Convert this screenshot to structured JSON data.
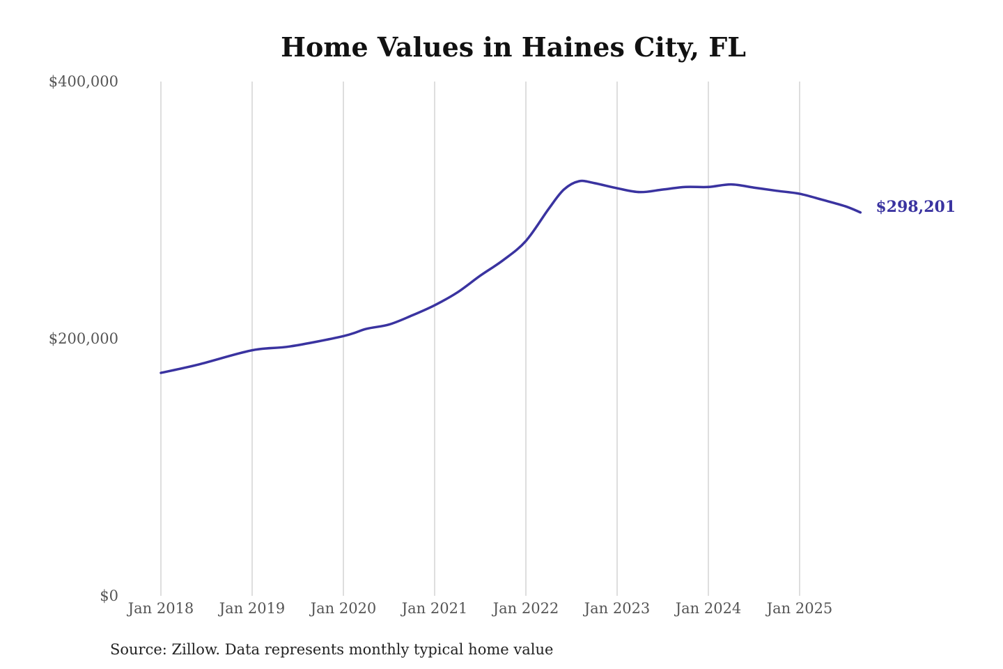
{
  "chart_data": {
    "type": "line",
    "title": "Home Values in Haines City, FL",
    "xlabel": "",
    "ylabel": "",
    "ylim": [
      0,
      400000
    ],
    "y_ticks": [
      {
        "value": 0,
        "label": "$0"
      },
      {
        "value": 200000,
        "label": "$200,000"
      },
      {
        "value": 400000,
        "label": "$400,000"
      }
    ],
    "x_ticks": [
      {
        "value": "2018-01",
        "label": "Jan 2018"
      },
      {
        "value": "2019-01",
        "label": "Jan 2019"
      },
      {
        "value": "2020-01",
        "label": "Jan 2020"
      },
      {
        "value": "2021-01",
        "label": "Jan 2021"
      },
      {
        "value": "2022-01",
        "label": "Jan 2022"
      },
      {
        "value": "2023-01",
        "label": "Jan 2023"
      },
      {
        "value": "2024-01",
        "label": "Jan 2024"
      },
      {
        "value": "2025-01",
        "label": "Jan 2025"
      }
    ],
    "grid": "vertical",
    "series_color": "#3a33a0",
    "end_label": "$298,201",
    "x": [
      "2018-01",
      "2018-06",
      "2019-01",
      "2019-06",
      "2020-01",
      "2020-04",
      "2020-07",
      "2020-10",
      "2021-01",
      "2021-04",
      "2021-07",
      "2021-10",
      "2022-01",
      "2022-04",
      "2022-06",
      "2022-08",
      "2022-10",
      "2023-01",
      "2023-04",
      "2023-07",
      "2023-10",
      "2024-01",
      "2024-04",
      "2024-07",
      "2024-10",
      "2025-01",
      "2025-04",
      "2025-07",
      "2025-09"
    ],
    "values": [
      173400,
      180000,
      191000,
      194000,
      202000,
      207600,
      211000,
      218000,
      226000,
      236000,
      249000,
      261000,
      276000,
      301000,
      316000,
      322500,
      321000,
      317000,
      314000,
      316000,
      318000,
      318000,
      320000,
      317500,
      315000,
      312700,
      308000,
      303000,
      298201
    ]
  },
  "footer": {
    "source": "Source: Zillow. Data represents monthly typical home value"
  }
}
